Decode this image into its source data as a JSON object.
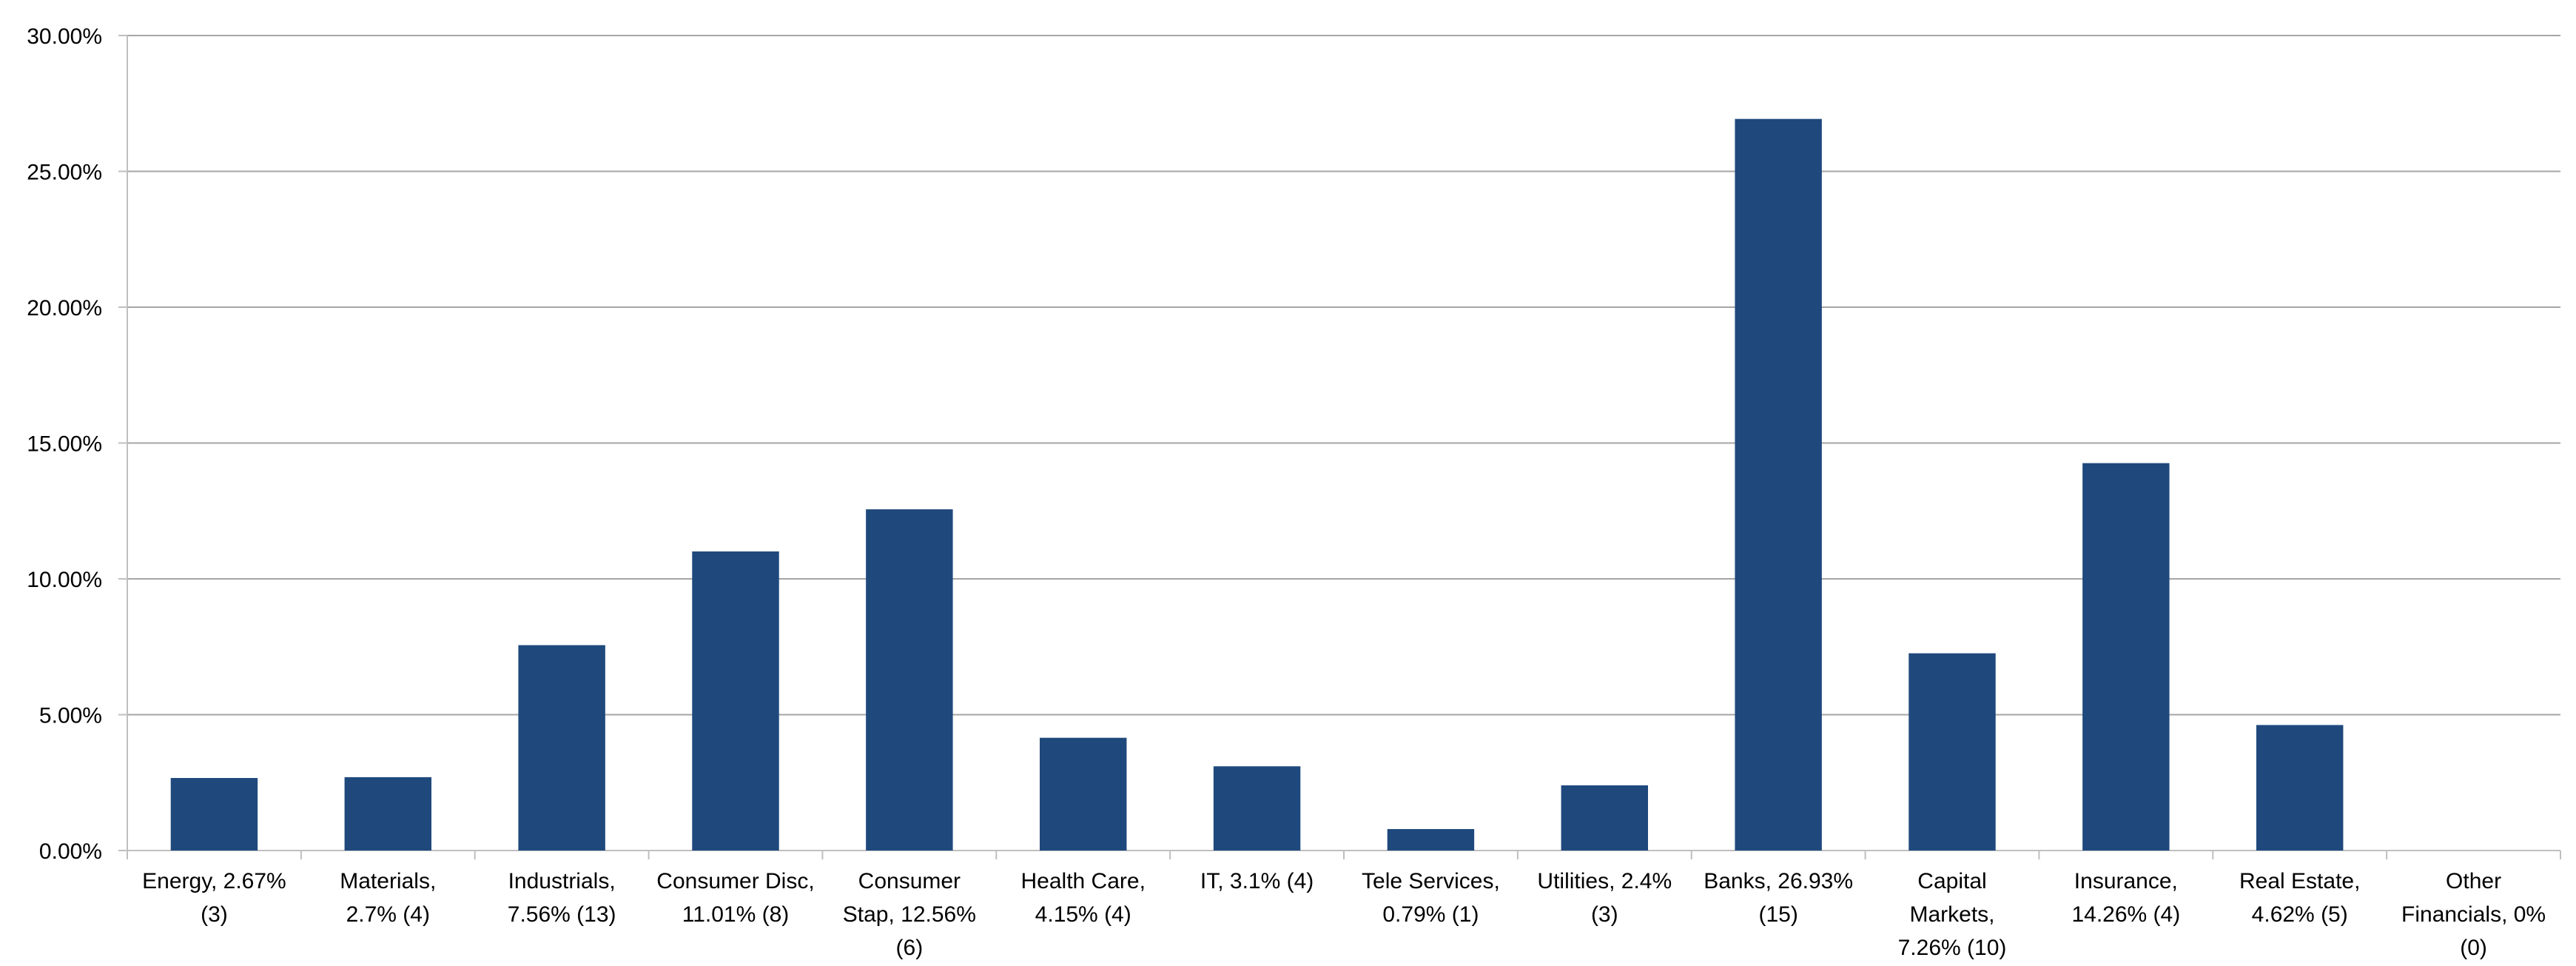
{
  "chart_data": {
    "type": "bar",
    "title": "",
    "xlabel": "",
    "ylabel": "",
    "ylim": [
      0,
      30
    ],
    "y_tick_values": [
      0,
      5,
      10,
      15,
      20,
      25,
      30
    ],
    "y_tick_labels": [
      "0.00%",
      "5.00%",
      "10.00%",
      "15.00%",
      "20.00%",
      "25.00%",
      "30.00%"
    ],
    "grid": "horizontal",
    "legend": "none",
    "bar_color": "#1F497D",
    "grid_color": "#A6A6A6",
    "axis_color": "#BFBFBF",
    "categories": [
      [
        "Energy, 2.67%",
        "(3)"
      ],
      [
        "Materials,",
        "2.7% (4)"
      ],
      [
        "Industrials,",
        "7.56% (13)"
      ],
      [
        "Consumer Disc,",
        "11.01% (8)"
      ],
      [
        "Consumer",
        "Stap, 12.56%",
        "(6)"
      ],
      [
        "Health Care,",
        "4.15% (4)"
      ],
      [
        "IT, 3.1% (4)"
      ],
      [
        "Tele Services,",
        "0.79% (1)"
      ],
      [
        "Utilities, 2.4%",
        "(3)"
      ],
      [
        "Banks, 26.93%",
        "(15)"
      ],
      [
        "Capital",
        "Markets,",
        "7.26% (10)"
      ],
      [
        "Insurance,",
        "14.26% (4)"
      ],
      [
        "Real Estate,",
        "4.62% (5)"
      ],
      [
        "Other",
        "Financials, 0%",
        "(0)"
      ]
    ],
    "values": [
      2.67,
      2.7,
      7.56,
      11.01,
      12.56,
      4.15,
      3.1,
      0.79,
      2.4,
      26.93,
      7.26,
      14.26,
      4.62,
      0
    ]
  }
}
